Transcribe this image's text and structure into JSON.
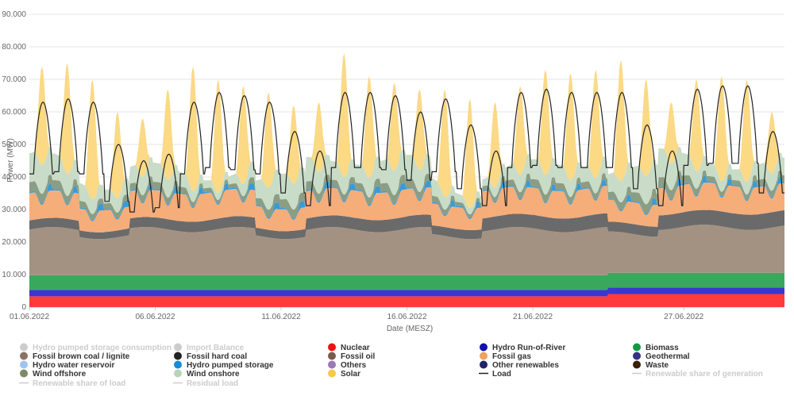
{
  "chart_data": {
    "type": "area",
    "stacked": true,
    "ylabel": "Power (MW)",
    "xlabel": "Date (MESZ)",
    "ylim": [
      0,
      90000
    ],
    "yticks": [
      "0",
      "10.000",
      "20.000",
      "30.000",
      "40.000",
      "50.000",
      "60.000",
      "70.000",
      "80.000",
      "90.000"
    ],
    "ytick_values": [
      0,
      10000,
      20000,
      30000,
      40000,
      50000,
      60000,
      70000,
      80000,
      90000
    ],
    "xrange": [
      "2022-06-01",
      "2022-06-30"
    ],
    "xticks": [
      "01.06.2022",
      "06.06.2022",
      "11.06.2022",
      "16.06.2022",
      "21.06.2022",
      "27.06.2022"
    ],
    "xtick_days": [
      0,
      5,
      10,
      15,
      20,
      26
    ],
    "grid": true,
    "legend_position": "bottom",
    "daily_peaks": [
      {
        "date": "2022-06-01",
        "load_peak": 63000,
        "total_peak": 74000
      },
      {
        "date": "2022-06-02",
        "load_peak": 64000,
        "total_peak": 75000
      },
      {
        "date": "2022-06-03",
        "load_peak": 63000,
        "total_peak": 70000
      },
      {
        "date": "2022-06-04",
        "load_peak": 50000,
        "total_peak": 60000
      },
      {
        "date": "2022-06-05",
        "load_peak": 45000,
        "total_peak": 58000
      },
      {
        "date": "2022-06-06",
        "load_peak": 47000,
        "total_peak": 67000
      },
      {
        "date": "2022-06-07",
        "load_peak": 63000,
        "total_peak": 74000
      },
      {
        "date": "2022-06-08",
        "load_peak": 66000,
        "total_peak": 70000
      },
      {
        "date": "2022-06-09",
        "load_peak": 65000,
        "total_peak": 68000
      },
      {
        "date": "2022-06-10",
        "load_peak": 63000,
        "total_peak": 66000
      },
      {
        "date": "2022-06-11",
        "load_peak": 54000,
        "total_peak": 62000
      },
      {
        "date": "2022-06-12",
        "load_peak": 48000,
        "total_peak": 63000
      },
      {
        "date": "2022-06-13",
        "load_peak": 66000,
        "total_peak": 78000
      },
      {
        "date": "2022-06-14",
        "load_peak": 66000,
        "total_peak": 71000
      },
      {
        "date": "2022-06-15",
        "load_peak": 65000,
        "total_peak": 69000
      },
      {
        "date": "2022-06-16",
        "load_peak": 60000,
        "total_peak": 67000
      },
      {
        "date": "2022-06-17",
        "load_peak": 64000,
        "total_peak": 67000
      },
      {
        "date": "2022-06-18",
        "load_peak": 56000,
        "total_peak": 64000
      },
      {
        "date": "2022-06-19",
        "load_peak": 48000,
        "total_peak": 63000
      },
      {
        "date": "2022-06-20",
        "load_peak": 66000,
        "total_peak": 68000
      },
      {
        "date": "2022-06-21",
        "load_peak": 67000,
        "total_peak": 73000
      },
      {
        "date": "2022-06-22",
        "load_peak": 66000,
        "total_peak": 72000
      },
      {
        "date": "2022-06-23",
        "load_peak": 66000,
        "total_peak": 73000
      },
      {
        "date": "2022-06-24",
        "load_peak": 66000,
        "total_peak": 76000
      },
      {
        "date": "2022-06-25",
        "load_peak": 56000,
        "total_peak": 70000
      },
      {
        "date": "2022-06-26",
        "load_peak": 48000,
        "total_peak": 63000
      },
      {
        "date": "2022-06-27",
        "load_peak": 67000,
        "total_peak": 70000
      },
      {
        "date": "2022-06-28",
        "load_peak": 68000,
        "total_peak": 71000
      },
      {
        "date": "2022-06-29",
        "load_peak": 68000,
        "total_peak": 70000
      },
      {
        "date": "2022-06-30",
        "load_peak": 54000,
        "total_peak": 60000
      }
    ],
    "typical_levels_mw": {
      "Nuclear": 3500,
      "Hydro Run-of-River": 2000,
      "Biomass": 4500,
      "Fossil brown coal / lignite": 14000,
      "Fossil hard coal": 4000,
      "Fossil gas": 7000,
      "Hydro pumped storage": 1000,
      "Wind onshore": 6000,
      "Wind offshore": 2000,
      "Solar": 23000
    },
    "stack_order": [
      "Nuclear",
      "Hydro Run-of-River",
      "Geothermal",
      "Biomass",
      "Fossil brown coal / lignite",
      "Fossil hard coal",
      "Fossil oil",
      "Others",
      "Waste",
      "Fossil gas",
      "Hydro water reservoir",
      "Other renewables",
      "Hydro pumped storage",
      "Wind offshore",
      "Wind onshore",
      "Solar"
    ],
    "series_colors": {
      "Nuclear": "#ff3b3b",
      "Hydro Run-of-River": "#3b37cc",
      "Geothermal": "#2e2a8f",
      "Biomass": "#3aa85c",
      "Fossil brown coal / lignite": "#a39282",
      "Fossil hard coal": "#6a6a6a",
      "Fossil oil": "#7a6252",
      "Others": "#a88ec2",
      "Waste": "#4a2a0c",
      "Fossil gas": "#f5ad7a",
      "Hydro water reservoir": "#9cc6ea",
      "Other renewables": "#2a2a7a",
      "Hydro pumped storage": "#3a9ad6",
      "Wind offshore": "#8b9d82",
      "Wind onshore": "#c8dcc8",
      "Solar": "#fbd985",
      "Load": "#222222"
    },
    "legend": [
      {
        "label": "Hydro pumped storage consumption",
        "marker": "dot",
        "color": "#cccccc",
        "active": false
      },
      {
        "label": "Import Balance",
        "marker": "dot",
        "color": "#cccccc",
        "active": false
      },
      {
        "label": "Nuclear",
        "marker": "dot",
        "color": "#ee1111",
        "active": true
      },
      {
        "label": "Hydro Run-of-River",
        "marker": "dot",
        "color": "#1111aa",
        "active": true
      },
      {
        "label": "Biomass",
        "marker": "dot",
        "color": "#119944",
        "active": true
      },
      {
        "label": "Fossil brown coal / lignite",
        "marker": "dot",
        "color": "#8b7464",
        "active": true
      },
      {
        "label": "Fossil hard coal",
        "marker": "dot",
        "color": "#222222",
        "active": true
      },
      {
        "label": "Fossil oil",
        "marker": "dot",
        "color": "#7a5a4a",
        "active": true
      },
      {
        "label": "Fossil gas",
        "marker": "dot",
        "color": "#f0a060",
        "active": true
      },
      {
        "label": "Geothermal",
        "marker": "dot",
        "color": "#333388",
        "active": true
      },
      {
        "label": "Hydro water reservoir",
        "marker": "dot",
        "color": "#a0c4f0",
        "active": true
      },
      {
        "label": "Hydro pumped storage",
        "marker": "dot",
        "color": "#1a8ad4",
        "active": true
      },
      {
        "label": "Others",
        "marker": "dot",
        "color": "#9a7ab8",
        "active": true
      },
      {
        "label": "Other renewables",
        "marker": "dot",
        "color": "#222266",
        "active": true
      },
      {
        "label": "Waste",
        "marker": "dot",
        "color": "#3a2008",
        "active": true
      },
      {
        "label": "Wind offshore",
        "marker": "dot",
        "color": "#7a8a6a",
        "active": true
      },
      {
        "label": "Wind onshore",
        "marker": "dot",
        "color": "#b8d4b8",
        "active": true
      },
      {
        "label": "Solar",
        "marker": "dot",
        "color": "#f8c848",
        "active": true
      },
      {
        "label": "Load",
        "marker": "line",
        "color": "#222222",
        "active": true
      },
      {
        "label": "Renewable share of generation",
        "marker": "line",
        "color": "#cccccc",
        "active": false
      },
      {
        "label": "Renewable share of load",
        "marker": "line",
        "color": "#cccccc",
        "active": false
      },
      {
        "label": "Residual load",
        "marker": "line",
        "color": "#cccccc",
        "active": false
      }
    ]
  }
}
